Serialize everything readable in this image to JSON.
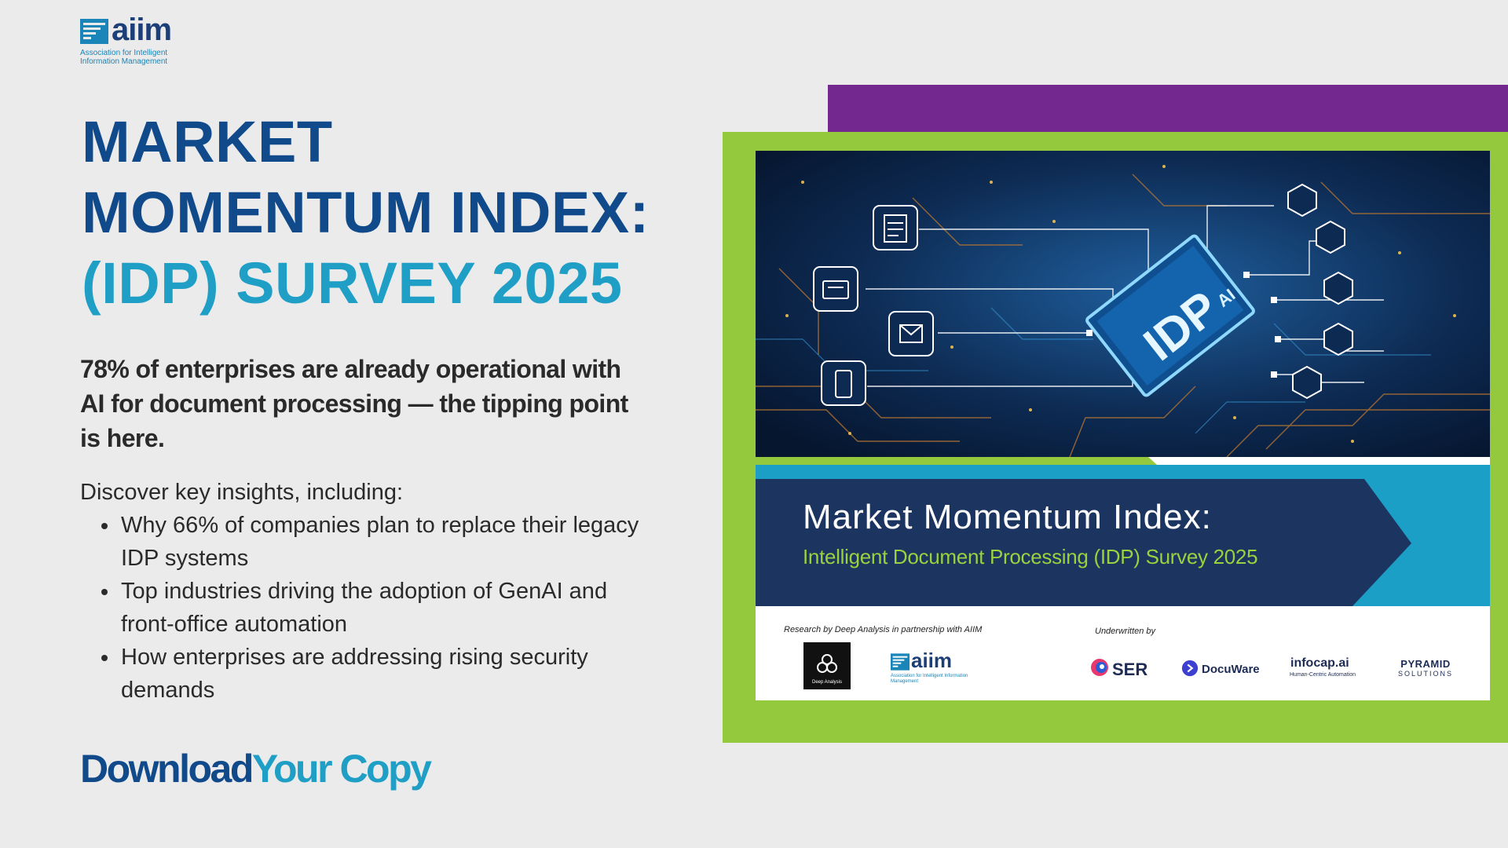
{
  "logo": {
    "word": "aiim",
    "subtitle": "Association for Intelligent Information Management"
  },
  "title": {
    "line1": "MARKET",
    "line2": "MOMENTUM INDEX:",
    "line3": "(IDP) SURVEY 2025"
  },
  "lead": "78% of enterprises are already operational with AI for document processing — the tipping point is here.",
  "insights": {
    "intro": "Discover key insights, including:",
    "items": [
      "Why 66% of companies plan to replace their legacy IDP systems",
      "Top industries driving the adoption of GenAI and front-office automation",
      "How enterprises are addressing rising security demands"
    ]
  },
  "cta": {
    "part1": "Download",
    "part2": "Your Copy"
  },
  "cover": {
    "chip_top": "AI",
    "chip_main": "IDP",
    "title": "Market Momentum Index:",
    "subtitle": "Intelligent Document Processing (IDP) Survey 2025",
    "research": "Research by Deep Analysis in partnership with AIIM",
    "underwritten": "Underwritten by",
    "deep_analysis": "Deep Analysis",
    "aiim_word": "aiim",
    "aiim_sub": "Association for Intelligent Information Management",
    "sponsors": {
      "ser": "SER",
      "docuware": "DocuWare",
      "infocap": "infocap.ai",
      "infocap_sub": "Human-Centric Automation",
      "pyramid": "PYRAMID",
      "pyramid_sub": "SOLUTIONS"
    }
  },
  "colors": {
    "navy": "#114a8a",
    "cyan": "#1f9fc5",
    "purple": "#72288f",
    "green": "#95c93d",
    "cover_band": "#1b3560"
  }
}
